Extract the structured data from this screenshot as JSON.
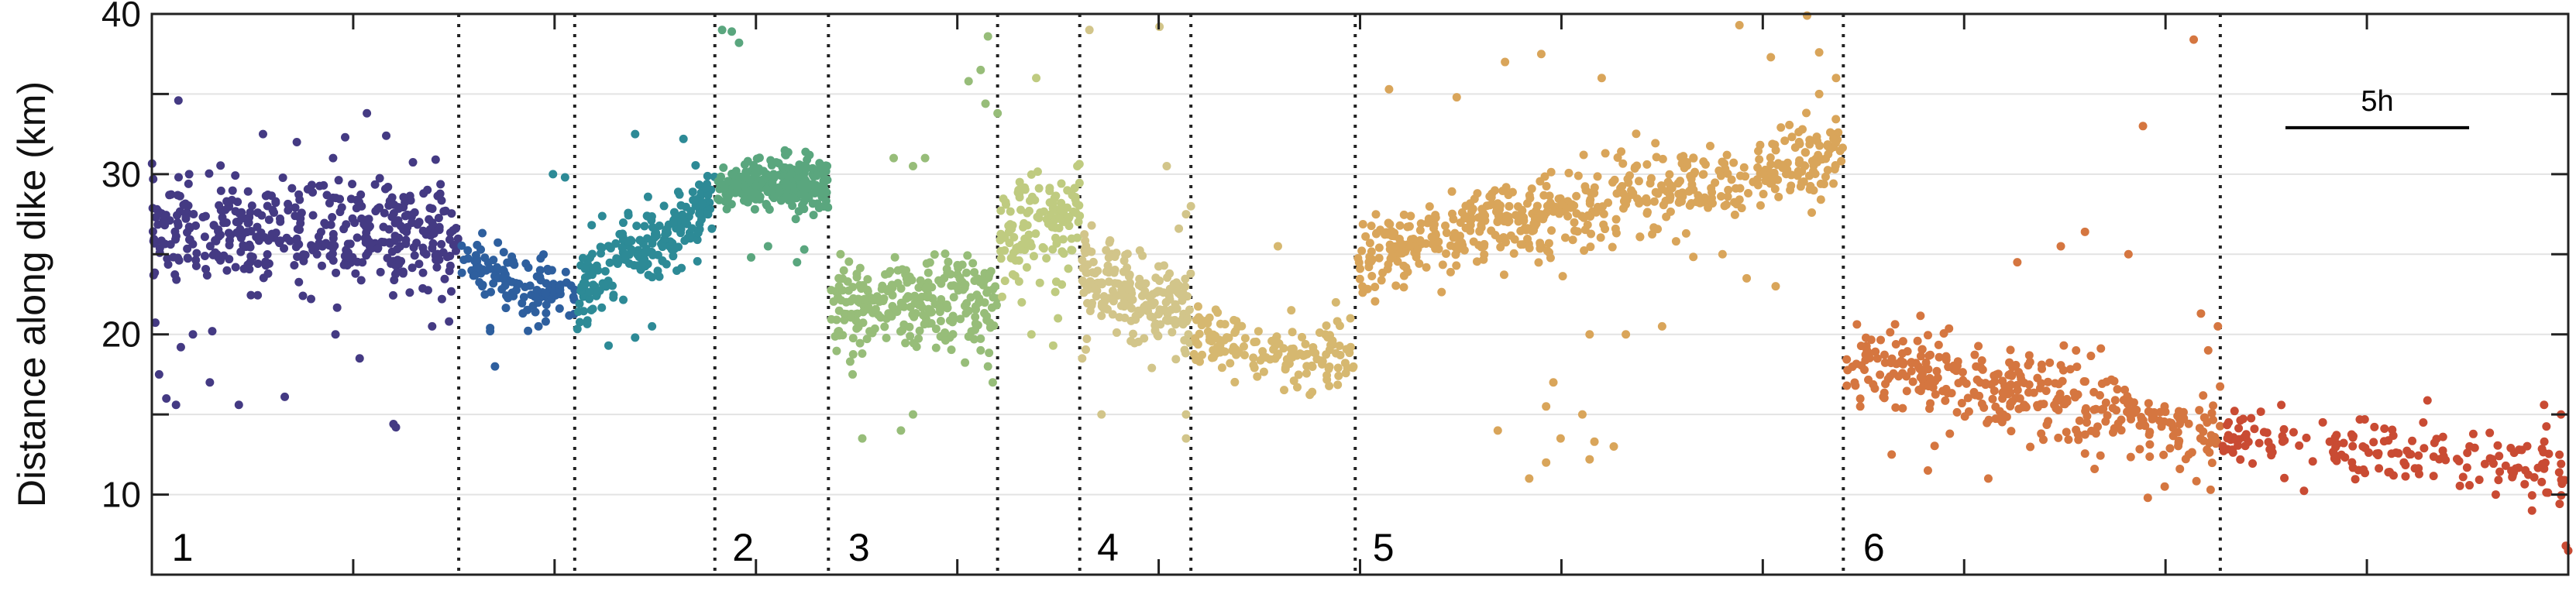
{
  "chart_data": {
    "type": "scatter",
    "title": "",
    "xlabel": "",
    "ylabel": "Distance along dike (km)",
    "ylim": [
      5,
      40
    ],
    "yticks": [
      10,
      20,
      30,
      40
    ],
    "xlim": [
      0,
      1
    ],
    "grid": true,
    "scale_bar": {
      "label": "5h",
      "value": 0.076,
      "y": 32.9
    },
    "dividers": [
      0.127,
      0.175,
      0.233,
      0.28,
      0.35,
      0.384,
      0.43,
      0.498,
      0.7,
      0.856
    ],
    "segment_labels": [
      {
        "text": "1",
        "x": 0.005
      },
      {
        "text": "2",
        "x": 0.237
      },
      {
        "text": "3",
        "x": 0.285
      },
      {
        "text": "4",
        "x": 0.388
      },
      {
        "text": "5",
        "x": 0.502
      },
      {
        "text": "6",
        "x": 0.705
      }
    ],
    "series": [
      {
        "color": "#443a83",
        "x": [
          0.0,
          0.127
        ],
        "center": [
          26.3,
          26.3
        ],
        "spread": 1.6,
        "count": 420,
        "outliers": [
          [
            0.003,
            17.5
          ],
          [
            0.006,
            16.0
          ],
          [
            0.01,
            15.6
          ],
          [
            0.012,
            19.2
          ],
          [
            0.017,
            20.0
          ],
          [
            0.025,
            20.2
          ],
          [
            0.024,
            17.0
          ],
          [
            0.036,
            15.6
          ],
          [
            0.055,
            16.1
          ],
          [
            0.076,
            20.0
          ],
          [
            0.086,
            18.5
          ],
          [
            0.1,
            14.4
          ],
          [
            0.101,
            14.2
          ],
          [
            0.116,
            20.5
          ],
          [
            0.123,
            20.8
          ],
          [
            0.011,
            34.6
          ],
          [
            0.046,
            32.5
          ],
          [
            0.06,
            32.0
          ],
          [
            0.08,
            32.3
          ],
          [
            0.089,
            33.8
          ],
          [
            0.097,
            32.4
          ],
          [
            0.075,
            31.0
          ]
        ]
      },
      {
        "color": "#2e5f9e",
        "x": [
          0.128,
          0.175
        ],
        "center": [
          24.3,
          22.2
        ],
        "spread": 1.0,
        "count": 120,
        "outliers": [
          [
            0.14,
            20.2
          ],
          [
            0.14,
            20.4
          ],
          [
            0.142,
            18.0
          ],
          [
            0.163,
            20.8
          ],
          [
            0.16,
            20.5
          ]
        ]
      },
      {
        "color": "#2d8a96",
        "x": [
          0.176,
          0.233
        ],
        "center": [
          22.5,
          28.5
        ],
        "spread": 1.2,
        "count": 210,
        "outliers": [
          [
            0.166,
            30.0
          ],
          [
            0.171,
            29.8
          ],
          [
            0.189,
            19.3
          ],
          [
            0.2,
            19.8
          ],
          [
            0.207,
            20.5
          ],
          [
            0.2,
            32.5
          ],
          [
            0.22,
            32.2
          ]
        ]
      },
      {
        "color": "#5aa67e",
        "x": [
          0.234,
          0.28
        ],
        "center": [
          29.2,
          29.6
        ],
        "spread": 0.8,
        "count": 260,
        "outliers": [
          [
            0.236,
            39.0
          ],
          [
            0.24,
            38.9
          ],
          [
            0.243,
            38.2
          ],
          [
            0.248,
            24.8
          ],
          [
            0.255,
            25.5
          ],
          [
            0.267,
            24.5
          ],
          [
            0.27,
            25.3
          ]
        ]
      },
      {
        "color": "#97bd79",
        "x": [
          0.281,
          0.35
        ],
        "center": [
          21.5,
          22.0
        ],
        "spread": 1.4,
        "count": 260,
        "outliers": [
          [
            0.285,
            25.0
          ],
          [
            0.289,
            18.3
          ],
          [
            0.29,
            17.5
          ],
          [
            0.294,
            13.5
          ],
          [
            0.31,
            14.0
          ],
          [
            0.315,
            15.0
          ],
          [
            0.307,
            31.0
          ],
          [
            0.315,
            30.5
          ],
          [
            0.32,
            31.0
          ],
          [
            0.338,
            35.8
          ],
          [
            0.343,
            36.5
          ],
          [
            0.345,
            34.4
          ],
          [
            0.35,
            33.8
          ],
          [
            0.346,
            38.6
          ],
          [
            0.343,
            19.0
          ],
          [
            0.346,
            18.0
          ],
          [
            0.348,
            17.0
          ]
        ]
      },
      {
        "color": "#bfcb80",
        "x": [
          0.351,
          0.384
        ],
        "center": [
          26.0,
          27.2
        ],
        "spread": 1.6,
        "count": 130,
        "outliers": [
          [
            0.366,
            36.0
          ],
          [
            0.383,
            30.5
          ],
          [
            0.36,
            22.0
          ],
          [
            0.375,
            21.0
          ],
          [
            0.364,
            20.0
          ],
          [
            0.373,
            19.3
          ]
        ]
      },
      {
        "color": "#d2c58a",
        "x": [
          0.385,
          0.43
        ],
        "center": [
          23.8,
          21.0
        ],
        "spread": 1.4,
        "count": 200,
        "outliers": [
          [
            0.388,
            39.0
          ],
          [
            0.393,
            15.0
          ],
          [
            0.42,
            30.5
          ],
          [
            0.417,
            39.2
          ],
          [
            0.428,
            15.0
          ],
          [
            0.428,
            13.5
          ],
          [
            0.425,
            26.6
          ],
          [
            0.428,
            27.5
          ],
          [
            0.43,
            28.0
          ],
          [
            0.385,
            18.5
          ]
        ]
      },
      {
        "color": "#d6b870",
        "x": [
          0.431,
          0.498
        ],
        "center": [
          20.0,
          18.0
        ],
        "spread": 1.0,
        "count": 150,
        "outliers": [
          [
            0.466,
            25.5
          ],
          [
            0.49,
            22.0
          ],
          [
            0.496,
            21.0
          ]
        ]
      },
      {
        "color": "#d9a55a",
        "x": [
          0.499,
          0.7
        ],
        "center": [
          25.0,
          31.0
        ],
        "spread": 1.3,
        "count": 560,
        "outliers": [
          [
            0.512,
            35.3
          ],
          [
            0.54,
            34.8
          ],
          [
            0.56,
            37.0
          ],
          [
            0.575,
            37.5
          ],
          [
            0.6,
            36.0
          ],
          [
            0.657,
            39.3
          ],
          [
            0.685,
            39.9
          ],
          [
            0.67,
            37.3
          ],
          [
            0.69,
            37.6
          ],
          [
            0.697,
            36.0
          ],
          [
            0.69,
            35.0
          ],
          [
            0.557,
            14.0
          ],
          [
            0.57,
            11.0
          ],
          [
            0.577,
            15.5
          ],
          [
            0.583,
            13.5
          ],
          [
            0.577,
            12.0
          ],
          [
            0.592,
            15.0
          ],
          [
            0.597,
            13.3
          ],
          [
            0.605,
            13.0
          ],
          [
            0.595,
            12.2
          ],
          [
            0.61,
            20.0
          ],
          [
            0.625,
            20.5
          ],
          [
            0.65,
            25.0
          ],
          [
            0.66,
            23.5
          ],
          [
            0.672,
            23.0
          ],
          [
            0.58,
            17.0
          ],
          [
            0.595,
            20.0
          ]
        ]
      },
      {
        "color": "#d57640",
        "x": [
          0.701,
          0.856
        ],
        "center": [
          18.5,
          14.0
        ],
        "spread": 1.3,
        "count": 360,
        "outliers": [
          [
            0.705,
            16.8
          ],
          [
            0.707,
            15.5
          ],
          [
            0.72,
            12.5
          ],
          [
            0.735,
            11.5
          ],
          [
            0.76,
            11.0
          ],
          [
            0.772,
            24.5
          ],
          [
            0.79,
            25.5
          ],
          [
            0.8,
            26.4
          ],
          [
            0.818,
            25.0
          ],
          [
            0.824,
            33.0
          ],
          [
            0.845,
            38.4
          ],
          [
            0.833,
            10.5
          ],
          [
            0.826,
            9.8
          ],
          [
            0.843,
            12.5
          ],
          [
            0.852,
            10.3
          ],
          [
            0.848,
            21.3
          ],
          [
            0.855,
            20.5
          ],
          [
            0.851,
            19.0
          ]
        ]
      },
      {
        "color": "#c94b33",
        "x": [
          0.857,
          1.0
        ],
        "center": [
          13.5,
          11.5
        ],
        "spread": 1.0,
        "count": 170,
        "outliers": [
          [
            0.99,
            15.6
          ],
          [
            0.997,
            15.0
          ],
          [
            0.999,
            6.8
          ],
          [
            1.0,
            6.5
          ],
          [
            0.985,
            9.0
          ],
          [
            0.97,
            10.0
          ],
          [
            0.94,
            14.5
          ],
          [
            0.915,
            13.0
          ]
        ]
      }
    ]
  }
}
